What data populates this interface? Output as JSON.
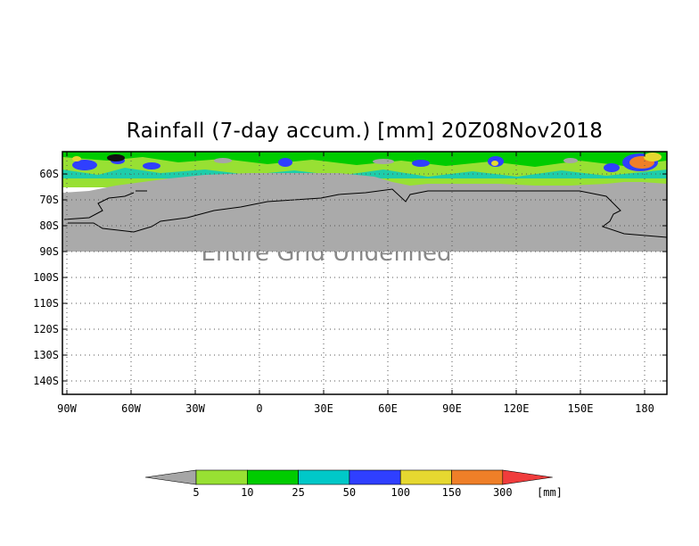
{
  "title": "Rainfall (7-day accum.) [mm] 20Z08Nov2018",
  "watermark": "Entire Grid Undefined",
  "map": {
    "lat_ticks": [
      "60S",
      "70S",
      "80S",
      "90S",
      "100S",
      "110S",
      "120S",
      "130S",
      "140S"
    ],
    "lon_ticks": [
      "90W",
      "60W",
      "30W",
      "0",
      "30E",
      "60E",
      "90E",
      "120E",
      "150E",
      "180"
    ],
    "land_color": "#aaaaaa",
    "grid": true
  },
  "colorbar": {
    "unit": "[mm]",
    "labels": [
      "5",
      "10",
      "25",
      "50",
      "100",
      "150",
      "300"
    ],
    "colors": [
      "#a6a6a6",
      "#98e033",
      "#00cc00",
      "#00c8c8",
      "#2f3fff",
      "#e6d830",
      "#ef7f28",
      "#f03c3c"
    ]
  }
}
